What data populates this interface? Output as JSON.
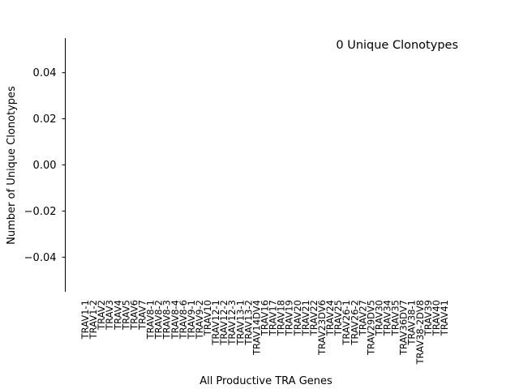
{
  "chart_data": {
    "type": "bar",
    "annotation": "0 Unique Clonotypes",
    "xlabel": "All Productive TRA Genes",
    "ylabel": "Number of Unique Clonotypes",
    "ylim": [
      -0.055,
      0.055
    ],
    "yticks": [
      0.04,
      0.02,
      0.0,
      -0.02,
      -0.04
    ],
    "ytick_labels": [
      "0.04",
      "0.02",
      "0.00",
      "−0.02",
      "−0.04"
    ],
    "categories": [
      "TRAV1-1",
      "TRAV1-2",
      "TRAV2",
      "TRAV3",
      "TRAV4",
      "TRAV5",
      "TRAV6",
      "TRAV7",
      "TRAV8-1",
      "TRAV8-2",
      "TRAV8-3",
      "TRAV8-4",
      "TRAV8-6",
      "TRAV9-1",
      "TRAV9-2",
      "TRAV10",
      "TRAV12-1",
      "TRAV12-2",
      "TRAV12-3",
      "TRAV13-1",
      "TRAV13-2",
      "TRAV14DV4",
      "TRAV16",
      "TRAV17",
      "TRAV18",
      "TRAV19",
      "TRAV20",
      "TRAV21",
      "TRAV22",
      "TRAV23DV6",
      "TRAV24",
      "TRAV25",
      "TRAV26-1",
      "TRAV26-2",
      "TRAV27",
      "TRAV29DV5",
      "TRAV30",
      "TRAV34",
      "TRAV35",
      "TRAV36DV7",
      "TRAV38-1",
      "TRAV38-2DV8",
      "TRAV39",
      "TRAV40",
      "TRAV41"
    ],
    "values": [
      0,
      0,
      0,
      0,
      0,
      0,
      0,
      0,
      0,
      0,
      0,
      0,
      0,
      0,
      0,
      0,
      0,
      0,
      0,
      0,
      0,
      0,
      0,
      0,
      0,
      0,
      0,
      0,
      0,
      0,
      0,
      0,
      0,
      0,
      0,
      0,
      0,
      0,
      0,
      0,
      0,
      0,
      0,
      0,
      0
    ]
  }
}
